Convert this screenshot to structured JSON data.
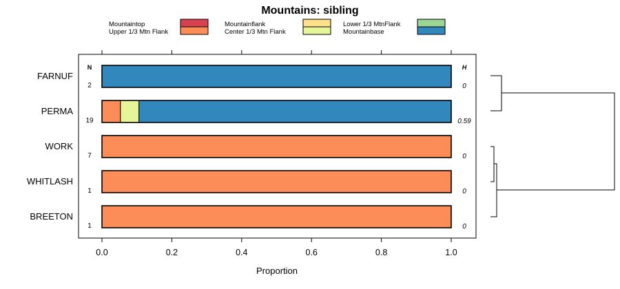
{
  "chart_data": {
    "type": "bar",
    "orientation": "horizontal",
    "stacked": true,
    "title": "Mountains: sibling",
    "xlabel": "Proportion",
    "ylabel": "",
    "xlim": [
      0,
      1
    ],
    "xticks": [
      "0.0",
      "0.2",
      "0.4",
      "0.6",
      "0.8",
      "1.0"
    ],
    "xtick_values": [
      0,
      0.2,
      0.4,
      0.6,
      0.8,
      1.0
    ],
    "legend": [
      {
        "name": "Mountaintop",
        "color": "#d7404e"
      },
      {
        "name": "Upper 1/3 Mtn Flank",
        "color": "#fc8d59"
      },
      {
        "name": "Mountainflank",
        "color": "#fee08b"
      },
      {
        "name": "Center 1/3 Mtn Flank",
        "color": "#e6f598"
      },
      {
        "name": "Lower 1/3 MtnFlank",
        "color": "#99d594"
      },
      {
        "name": "Mountainbase",
        "color": "#3288bd"
      }
    ],
    "header_n": "N",
    "header_h": "H",
    "categories": [
      "FARNUF",
      "PERMA",
      "WORK",
      "WHITLASH",
      "BREETON"
    ],
    "n": [
      "2",
      "19",
      "7",
      "1",
      "1"
    ],
    "h": [
      "0",
      "0.59",
      "0",
      "0",
      "0"
    ],
    "series": [
      {
        "name": "Mountaintop",
        "values": [
          0,
          0,
          0,
          0,
          0
        ]
      },
      {
        "name": "Upper 1/3 Mtn Flank",
        "values": [
          0,
          0.053,
          1.0,
          1.0,
          1.0
        ]
      },
      {
        "name": "Mountainflank",
        "values": [
          0,
          0,
          0,
          0,
          0
        ]
      },
      {
        "name": "Center 1/3 Mtn Flank",
        "values": [
          0,
          0.053,
          0,
          0,
          0
        ]
      },
      {
        "name": "Lower 1/3 MtnFlank",
        "values": [
          0,
          0,
          0,
          0,
          0
        ]
      },
      {
        "name": "Mountainbase",
        "values": [
          1.0,
          0.894,
          0,
          0,
          0
        ]
      }
    ],
    "dendrogram": "hierarchical clustering of rows shown to the right"
  }
}
